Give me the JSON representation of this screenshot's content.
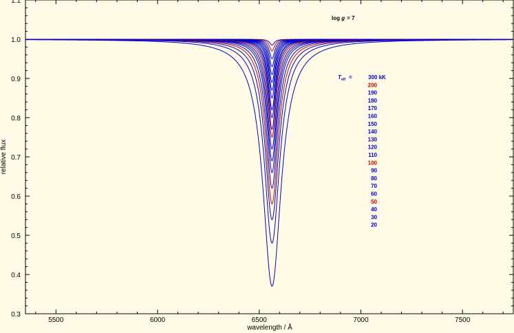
{
  "chart_data": {
    "type": "line",
    "xlabel": "wavelength / Å",
    "ylabel": "relative flux",
    "xlim": [
      5350,
      7750
    ],
    "ylim": [
      0.3,
      1.1
    ],
    "x_ticks": [
      "5500",
      "6000",
      "6500",
      "7000",
      "7500"
    ],
    "y_ticks": [
      "0.3",
      "0.4",
      "0.5",
      "0.6",
      "0.7",
      "0.8",
      "0.9",
      "1.0",
      "1.1"
    ],
    "line_center": 6563,
    "annotation_logg": {
      "prefix": "log ",
      "symbol": "g",
      "value": "= 7"
    },
    "legend_teff": {
      "symbol": "T",
      "subscript": "eff",
      "eq": "="
    },
    "colors": {
      "blue": "#0000cc",
      "red": "#cc0000"
    },
    "series": [
      {
        "label": "300 kK",
        "color": "#0000cc",
        "min_flux": 0.985,
        "width": 14
      },
      {
        "label": "200",
        "color": "#cc0000",
        "min_flux": 0.97,
        "width": 15
      },
      {
        "label": "190",
        "color": "#0000cc",
        "min_flux": 0.95,
        "width": 16
      },
      {
        "label": "180",
        "color": "#0000cc",
        "min_flux": 0.93,
        "width": 17
      },
      {
        "label": "170",
        "color": "#0000cc",
        "min_flux": 0.91,
        "width": 18
      },
      {
        "label": "160",
        "color": "#0000cc",
        "min_flux": 0.89,
        "width": 19
      },
      {
        "label": "150",
        "color": "#0000cc",
        "min_flux": 0.87,
        "width": 20
      },
      {
        "label": "140",
        "color": "#0000cc",
        "min_flux": 0.85,
        "width": 21
      },
      {
        "label": "130",
        "color": "#0000cc",
        "min_flux": 0.82,
        "width": 22
      },
      {
        "label": "120",
        "color": "#0000cc",
        "min_flux": 0.8,
        "width": 23
      },
      {
        "label": "110",
        "color": "#0000cc",
        "min_flux": 0.77,
        "width": 24
      },
      {
        "label": "100",
        "color": "#cc0000",
        "min_flux": 0.75,
        "width": 26
      },
      {
        "label": "90",
        "color": "#0000cc",
        "min_flux": 0.72,
        "width": 28
      },
      {
        "label": "80",
        "color": "#0000cc",
        "min_flux": 0.69,
        "width": 30
      },
      {
        "label": "70",
        "color": "#0000cc",
        "min_flux": 0.66,
        "width": 32
      },
      {
        "label": "60",
        "color": "#0000cc",
        "min_flux": 0.62,
        "width": 35
      },
      {
        "label": "50",
        "color": "#cc0000",
        "min_flux": 0.58,
        "width": 38
      },
      {
        "label": "40",
        "color": "#0000cc",
        "min_flux": 0.54,
        "width": 42
      },
      {
        "label": "30",
        "color": "#0000cc",
        "min_flux": 0.48,
        "width": 47
      },
      {
        "label": "20",
        "color": "#0000cc",
        "min_flux": 0.37,
        "width": 55
      }
    ]
  }
}
